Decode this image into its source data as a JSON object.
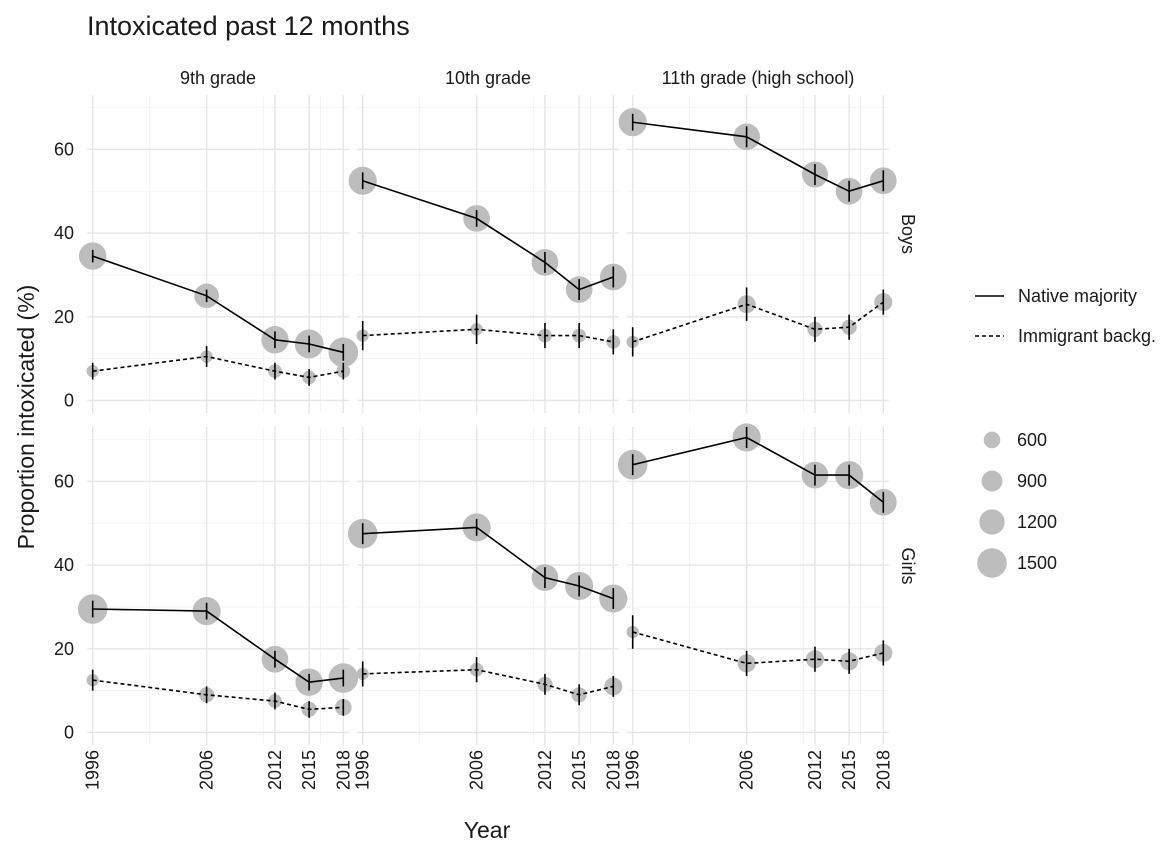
{
  "chart_data": {
    "type": "line",
    "title": "Intoxicated past 12 months",
    "xlabel": "Year",
    "ylabel": "Proportion intoxicated (%)",
    "x": [
      1996,
      2006,
      2012,
      2015,
      2018
    ],
    "x_ticks": [
      "1996",
      "2006",
      "2012",
      "2015",
      "2018"
    ],
    "y_ticks": [
      "0",
      "20",
      "40",
      "60"
    ],
    "xlim": [
      1995.5,
      2018.5
    ],
    "ylim": [
      -3,
      73
    ],
    "grid": true,
    "legend_position": "right",
    "facet_columns": [
      "9th grade",
      "10th grade",
      "11th grade (high school)"
    ],
    "facet_rows": [
      "Boys",
      "Girls"
    ],
    "series_legend": [
      {
        "name": "Native majority",
        "style": "solid"
      },
      {
        "name": "Immigrant backg.",
        "style": "dashed"
      }
    ],
    "size_legend": [
      {
        "label": "600",
        "value": 600
      },
      {
        "label": "900",
        "value": 900
      },
      {
        "label": "1200",
        "value": 1200
      },
      {
        "label": "1500",
        "value": 1500
      }
    ],
    "panels": [
      {
        "row": "Boys",
        "col": "9th grade",
        "series": [
          {
            "name": "Native majority",
            "values": [
              34.5,
              25,
              14.5,
              13.5,
              11.5
            ],
            "err": [
              1.5,
              1.5,
              2,
              2,
              2
            ],
            "n": [
              1350,
              1150,
              1350,
              1450,
              1500
            ]
          },
          {
            "name": "Immigrant backg.",
            "values": [
              7,
              10.5,
              7,
              5.5,
              7
            ],
            "err": [
              2,
              2.5,
              2,
              2,
              2
            ],
            "n": [
              300,
              300,
              400,
              400,
              400
            ]
          }
        ]
      },
      {
        "row": "Boys",
        "col": "10th grade",
        "series": [
          {
            "name": "Native majority",
            "values": [
              52.5,
              43.5,
              33,
              26.5,
              29.5
            ],
            "err": [
              2,
              2,
              2.5,
              2.5,
              2.5
            ],
            "n": [
              1400,
              1300,
              1300,
              1300,
              1300
            ]
          },
          {
            "name": "Immigrant backg.",
            "values": [
              15.5,
              17,
              15.5,
              15.5,
              14
            ],
            "err": [
              3.5,
              3.5,
              3,
              3,
              3
            ],
            "n": [
              300,
              300,
              400,
              400,
              400
            ]
          }
        ]
      },
      {
        "row": "Boys",
        "col": "11th grade (high school)",
        "series": [
          {
            "name": "Native majority",
            "values": [
              66.5,
              63,
              54,
              50,
              52.5
            ],
            "err": [
              2,
              2.5,
              2.5,
              2.5,
              2.5
            ],
            "n": [
              1400,
              1300,
              1250,
              1300,
              1300
            ]
          },
          {
            "name": "Immigrant backg.",
            "values": [
              14,
              23,
              17,
              17.5,
              23.5
            ],
            "err": [
              3.5,
              4,
              3,
              3,
              3
            ],
            "n": [
              300,
              700,
              500,
              500,
              700
            ]
          }
        ]
      },
      {
        "row": "Girls",
        "col": "9th grade",
        "series": [
          {
            "name": "Native majority",
            "values": [
              29.5,
              29,
              17.5,
              12,
              13
            ],
            "err": [
              2,
              2,
              2,
              2,
              2
            ],
            "n": [
              1500,
              1400,
              1300,
              1350,
              1500
            ]
          },
          {
            "name": "Immigrant backg.",
            "values": [
              12.5,
              9,
              7.5,
              5.5,
              6
            ],
            "err": [
              2.5,
              2,
              2,
              2,
              2
            ],
            "n": [
              300,
              500,
              400,
              500,
              600
            ]
          }
        ]
      },
      {
        "row": "Girls",
        "col": "10th grade",
        "series": [
          {
            "name": "Native majority",
            "values": [
              47.5,
              49,
              37,
              35,
              32
            ],
            "err": [
              2.5,
              2,
              2.5,
              2.5,
              2.5
            ],
            "n": [
              1500,
              1400,
              1300,
              1400,
              1400
            ]
          },
          {
            "name": "Immigrant backg.",
            "values": [
              14,
              15,
              11.5,
              9,
              11
            ],
            "err": [
              3,
              3,
              2.5,
              2.5,
              2.5
            ],
            "n": [
              300,
              400,
              500,
              500,
              700
            ]
          }
        ]
      },
      {
        "row": "Girls",
        "col": "11th grade (high school)",
        "series": [
          {
            "name": "Native majority",
            "values": [
              64,
              70.5,
              61.5,
              61.5,
              55
            ],
            "err": [
              2.5,
              2.5,
              2.5,
              2.5,
              2.5
            ],
            "n": [
              1500,
              1400,
              1300,
              1400,
              1300
            ]
          },
          {
            "name": "Immigrant backg.",
            "values": [
              24,
              16.5,
              17.5,
              17,
              19
            ],
            "err": [
              4,
              3,
              3,
              3,
              3
            ],
            "n": [
              300,
              700,
              700,
              700,
              700
            ]
          }
        ]
      }
    ]
  }
}
